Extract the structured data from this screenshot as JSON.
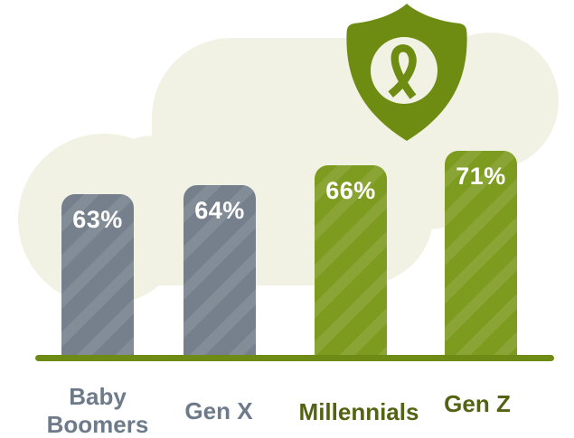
{
  "colors": {
    "cloud_cream": "#F1F2E3",
    "shield_green": "#6F8C12",
    "bar_green": "#7D9B1E",
    "bar_green_stripe": "#8AA535",
    "bar_gray": "#75808C",
    "bar_gray_stripe": "#818B96",
    "baseline_green": "#6E8B15",
    "label_gray": "#6D7A8A",
    "label_green": "#536312",
    "value_text": "#FFFFFF"
  },
  "icons": {
    "badge": "shield-icon",
    "badge_glyph": "awareness-ribbon-icon"
  },
  "chart_data": {
    "type": "bar",
    "categories": [
      "Baby Boomers",
      "Gen X",
      "Millennials",
      "Gen Z"
    ],
    "values": [
      63,
      64,
      66,
      71
    ],
    "value_labels": [
      "63%",
      "64%",
      "66%",
      "71%"
    ],
    "bar_colors": [
      "#75808C",
      "#75808C",
      "#7D9B1E",
      "#7D9B1E"
    ],
    "bar_pattern": "diagonal-stripes",
    "legend": "none",
    "grid": "off",
    "axis": "baseline-only"
  }
}
